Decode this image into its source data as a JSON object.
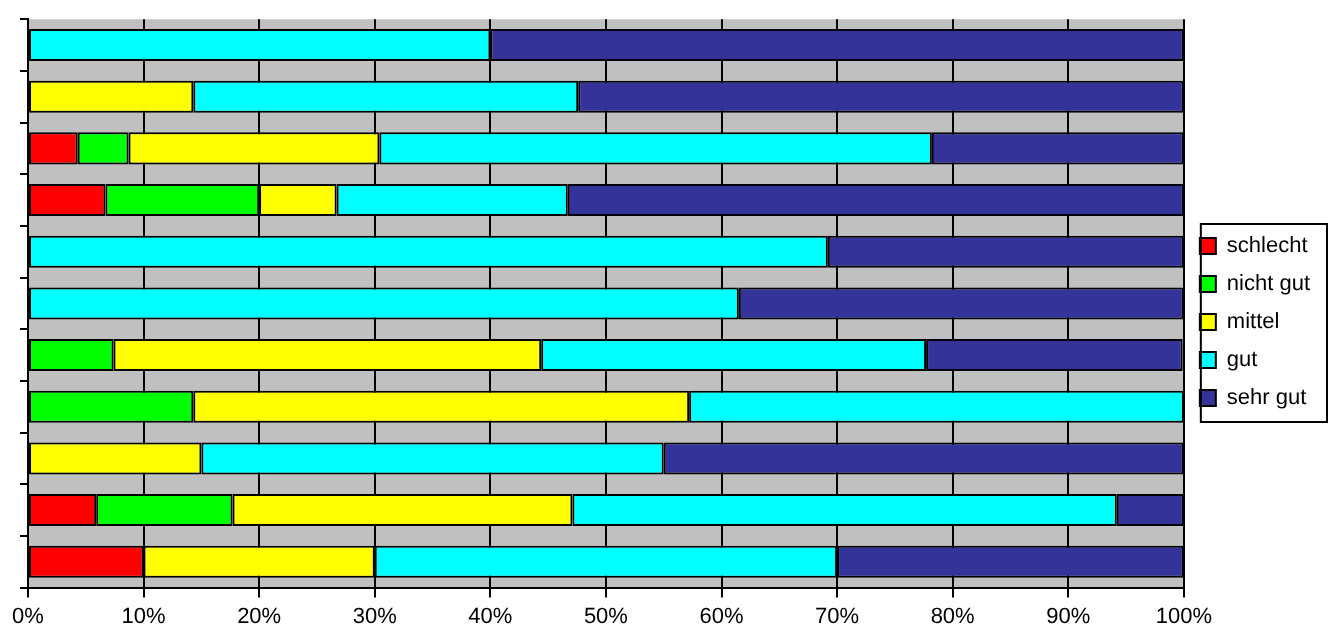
{
  "chart_data": {
    "type": "bar",
    "orientation": "horizontal",
    "stacked": true,
    "categories": [
      null,
      null,
      null,
      null,
      null,
      null,
      null,
      null,
      null,
      null,
      null
    ],
    "series": [
      {
        "name": "schlecht",
        "color": "#ff0000",
        "values": [
          0,
          0,
          4.3,
          6.7,
          0,
          0,
          0,
          0,
          0,
          5.9,
          10
        ]
      },
      {
        "name": "nicht gut",
        "color": "#00ff00",
        "values": [
          0,
          0,
          4.4,
          13.3,
          0,
          0,
          7.4,
          14.3,
          0,
          11.8,
          0
        ]
      },
      {
        "name": "mittel",
        "color": "#ffff00",
        "values": [
          0,
          14.3,
          21.7,
          6.7,
          0,
          0,
          37,
          42.9,
          15,
          29.4,
          20
        ]
      },
      {
        "name": "gut",
        "color": "#00ffff",
        "values": [
          40,
          33.3,
          47.8,
          20,
          69.2,
          61.5,
          33.3,
          42.8,
          40,
          47.1,
          40
        ]
      },
      {
        "name": "sehr gut",
        "color": "#333399",
        "values": [
          60,
          52.4,
          21.8,
          53.3,
          30.8,
          38.5,
          22.2,
          0,
          45,
          5.8,
          30
        ]
      }
    ],
    "xlim": [
      0,
      100
    ],
    "xticks": [
      {
        "value": 0,
        "label": "0%"
      },
      {
        "value": 10,
        "label": "10%"
      },
      {
        "value": 20,
        "label": "20%"
      },
      {
        "value": 30,
        "label": "30%"
      },
      {
        "value": 40,
        "label": "40%"
      },
      {
        "value": 50,
        "label": "50%"
      },
      {
        "value": 60,
        "label": "60%"
      },
      {
        "value": 70,
        "label": "70%"
      },
      {
        "value": 80,
        "label": "80%"
      },
      {
        "value": 90,
        "label": "90%"
      },
      {
        "value": 100,
        "label": "100%"
      }
    ],
    "grid": "x",
    "legend": "right"
  }
}
